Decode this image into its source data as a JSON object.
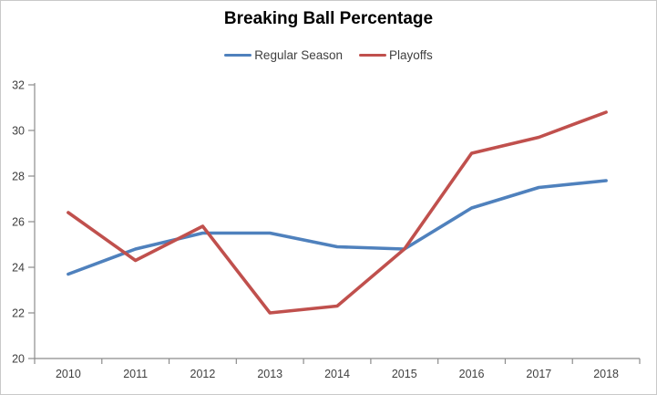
{
  "window": {
    "background_color": "#ffffff",
    "border_color": "#c9c9c9"
  },
  "chart_data": {
    "type": "line",
    "title": "Breaking Ball Percentage",
    "categories": [
      "2010",
      "2011",
      "2012",
      "2013",
      "2014",
      "2015",
      "2016",
      "2017",
      "2018"
    ],
    "series": [
      {
        "name": "Regular Season",
        "color": "#4F81BD",
        "values": [
          23.7,
          24.8,
          25.5,
          25.5,
          24.9,
          24.8,
          26.6,
          27.5,
          27.8
        ]
      },
      {
        "name": "Playoffs",
        "color": "#C0504D",
        "values": [
          26.4,
          24.3,
          25.8,
          22.0,
          22.3,
          24.8,
          29.0,
          29.7,
          30.8
        ]
      }
    ],
    "xlabel": "",
    "ylabel": "",
    "ylim": [
      20,
      32
    ],
    "yticks": [
      20,
      22,
      24,
      26,
      28,
      30,
      32
    ],
    "grid": false,
    "legend_position": "top",
    "axis_color": "#8c8c8c",
    "label_color": "#3f3f3f",
    "title_color": "#000000"
  }
}
